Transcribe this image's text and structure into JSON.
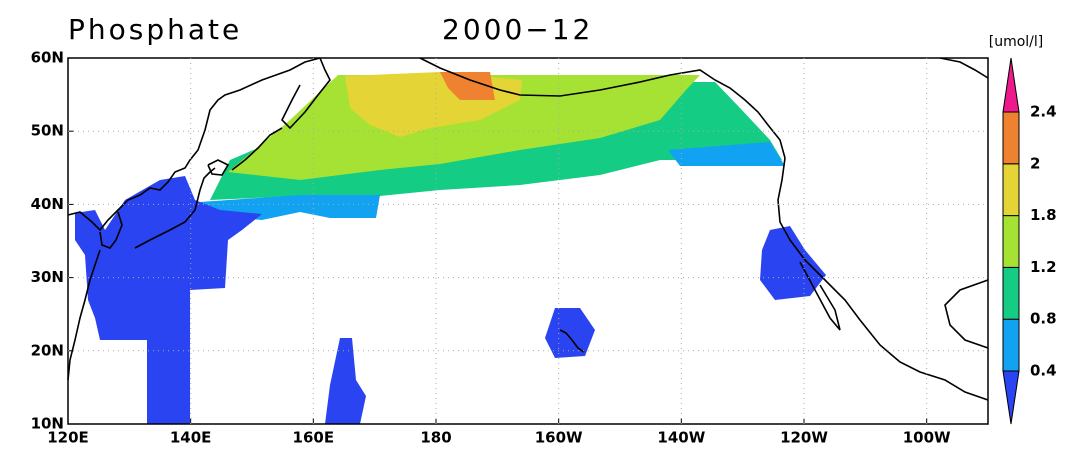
{
  "title": "Phosphate",
  "period": "2000−12",
  "units": "[umol/l]",
  "x_axis": {
    "ticks": [
      "120E",
      "140E",
      "160E",
      "180",
      "160W",
      "140W",
      "120W",
      "100W"
    ]
  },
  "y_axis": {
    "ticks": [
      "10N",
      "20N",
      "30N",
      "40N",
      "50N",
      "60N"
    ]
  },
  "colorbar": {
    "labels": [
      "0.4",
      "0.8",
      "1.2",
      "1.8",
      "2",
      "2.4"
    ],
    "colors": [
      "#2a44f2",
      "#12a2f2",
      "#14cc84",
      "#a6e234",
      "#e4d436",
      "#ee8230",
      "#ee1a8c"
    ]
  }
}
